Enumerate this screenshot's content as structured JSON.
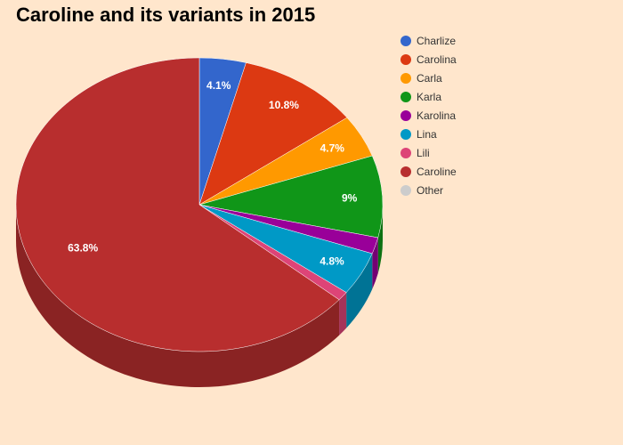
{
  "chart_data": {
    "type": "pie",
    "title": "Caroline and its variants in 2015",
    "legend_position": "top-right",
    "slices": [
      {
        "name": "Charlize",
        "value": 4.1,
        "label": "4.1%",
        "color": "#3366CC"
      },
      {
        "name": "Carolina",
        "value": 10.8,
        "label": "10.8%",
        "color": "#DC3912"
      },
      {
        "name": "Carla",
        "value": 4.7,
        "label": "4.7%",
        "color": "#FF9900"
      },
      {
        "name": "Karla",
        "value": 9.0,
        "label": "9%",
        "color": "#109618"
      },
      {
        "name": "Karolina",
        "value": 1.8,
        "label": "",
        "color": "#990099"
      },
      {
        "name": "Lina",
        "value": 4.8,
        "label": "4.8%",
        "color": "#0099C6"
      },
      {
        "name": "Lili",
        "value": 1.0,
        "label": "",
        "color": "#DD4477"
      },
      {
        "name": "Caroline",
        "value": 63.8,
        "label": "63.8%",
        "color": "#B82E2E"
      },
      {
        "name": "Other",
        "value": 0.0,
        "label": "",
        "color": "#CCCCCC"
      }
    ]
  }
}
